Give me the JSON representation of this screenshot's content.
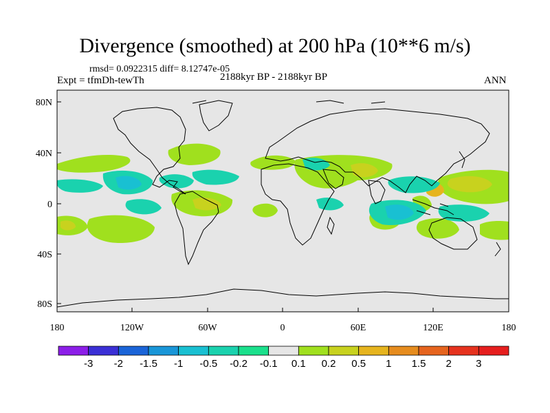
{
  "title": "Divergence (smoothed) at 200 hPa (10**6 m/s)",
  "stats": "rmsd= 0.0922315 diff= 8.12747e-05",
  "experiment": "Expt = tfmDh-tewTh",
  "period": "2188kyr BP - 2188kyr BP",
  "season": "ANN",
  "lat_labels": [
    "80N",
    "40N",
    "0",
    "40S",
    "80S"
  ],
  "lon_labels": [
    "180",
    "120W",
    "60W",
    "0",
    "60E",
    "120E",
    "180"
  ],
  "colorbar": {
    "labels": [
      "-3",
      "-2",
      "-1.5",
      "-1",
      "-0.5",
      "-0.2",
      "-0.1",
      "0.1",
      "0.2",
      "0.5",
      "1",
      "1.5",
      "2",
      "3"
    ],
    "colors": [
      "#8c1ee8",
      "#3b2fd6",
      "#1a64d8",
      "#1996d8",
      "#19c0d2",
      "#1ad2ae",
      "#1ae08c",
      "#e6e6e6",
      "#a0e01e",
      "#c8d21e",
      "#e6b41e",
      "#e68c1e",
      "#e6641e",
      "#e6321e",
      "#e61e1e"
    ]
  },
  "colors": {
    "land_bg": "#e6e6e6",
    "coast": "#000000",
    "frame": "#000000"
  }
}
